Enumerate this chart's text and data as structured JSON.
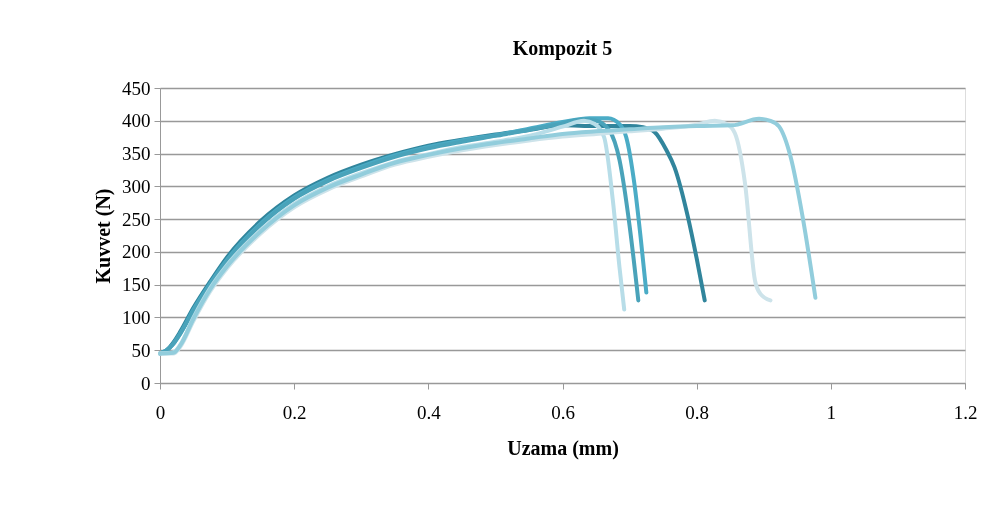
{
  "chart_data": {
    "type": "line",
    "title": "Kompozit 5",
    "xlabel": "Uzama (mm)",
    "ylabel": "Kuvvet (N)",
    "xlim": [
      0,
      1.2
    ],
    "xticks": [
      0,
      0.2,
      0.4,
      0.6,
      0.8,
      1,
      1.2
    ],
    "ylim": [
      0,
      450
    ],
    "yticks": [
      0,
      50,
      100,
      150,
      200,
      250,
      300,
      350,
      400,
      450
    ],
    "grid": "y",
    "legend": false,
    "marker": "none",
    "line_style": "solid",
    "series": [
      {
        "color": "#31859c",
        "x": [
          0,
          0.01,
          0.02,
          0.03,
          0.05,
          0.075,
          0.1,
          0.15,
          0.2,
          0.25,
          0.3,
          0.35,
          0.4,
          0.45,
          0.5,
          0.55,
          0.6,
          0.65,
          0.7,
          0.72,
          0.737,
          0.755,
          0.767,
          0.787,
          0.8,
          0.812
        ],
        "values": [
          45,
          50,
          62,
          78,
          115,
          155,
          192,
          247,
          286,
          313,
          333,
          349,
          362,
          371,
          379,
          386,
          393,
          392,
          392,
          390,
          383,
          355,
          329,
          253,
          190,
          126
        ]
      },
      {
        "color": "#4bacc6",
        "x": [
          0,
          0.01,
          0.02,
          0.03,
          0.05,
          0.075,
          0.1,
          0.15,
          0.2,
          0.25,
          0.3,
          0.35,
          0.4,
          0.45,
          0.5,
          0.55,
          0.6,
          0.64,
          0.668,
          0.685,
          0.695,
          0.707,
          0.717,
          0.725
        ],
        "values": [
          45,
          50,
          60,
          75,
          112,
          152,
          188,
          243,
          283,
          310,
          330,
          347,
          360,
          370,
          378,
          388,
          398,
          404,
          404,
          395,
          375,
          305,
          217,
          138
        ]
      },
      {
        "color": "#4aa3ba",
        "x": [
          0,
          0.01,
          0.02,
          0.03,
          0.05,
          0.075,
          0.1,
          0.15,
          0.2,
          0.25,
          0.3,
          0.35,
          0.4,
          0.45,
          0.5,
          0.55,
          0.6,
          0.63,
          0.65,
          0.67,
          0.685,
          0.7,
          0.713
        ],
        "values": [
          45,
          50,
          60,
          75,
          110,
          150,
          186,
          241,
          281,
          308,
          328,
          345,
          358,
          368,
          377,
          386,
          396,
          402,
          400,
          385,
          340,
          240,
          126
        ]
      },
      {
        "color": "#b7dde8",
        "x": [
          0,
          0.02,
          0.03,
          0.05,
          0.075,
          0.1,
          0.15,
          0.2,
          0.25,
          0.3,
          0.35,
          0.4,
          0.45,
          0.5,
          0.55,
          0.6,
          0.632,
          0.648,
          0.662,
          0.675,
          0.685,
          0.692
        ],
        "values": [
          45,
          47,
          58,
          100,
          145,
          180,
          233,
          273,
          300,
          320,
          337,
          349,
          360,
          368,
          377,
          391,
          400,
          395,
          375,
          279,
          176,
          112
        ]
      },
      {
        "color": "#cde3ea",
        "x": [
          0,
          0.02,
          0.03,
          0.05,
          0.075,
          0.1,
          0.15,
          0.2,
          0.25,
          0.3,
          0.35,
          0.4,
          0.45,
          0.5,
          0.55,
          0.6,
          0.65,
          0.7,
          0.75,
          0.8,
          0.827,
          0.845,
          0.857,
          0.872,
          0.887,
          0.895,
          0.91
        ],
        "values": [
          45,
          45,
          55,
          95,
          140,
          175,
          228,
          268,
          295,
          315,
          333,
          345,
          355,
          363,
          370,
          376,
          380,
          384,
          388,
          394,
          400,
          395,
          381,
          305,
          156,
          136,
          126
        ]
      },
      {
        "color": "#92cddc",
        "x": [
          0,
          0.02,
          0.03,
          0.05,
          0.075,
          0.1,
          0.15,
          0.2,
          0.25,
          0.3,
          0.35,
          0.4,
          0.45,
          0.5,
          0.55,
          0.6,
          0.65,
          0.7,
          0.75,
          0.8,
          0.853,
          0.893,
          0.91,
          0.923,
          0.94,
          0.958,
          0.977
        ],
        "values": [
          45,
          46,
          57,
          98,
          143,
          178,
          231,
          271,
          298,
          318,
          336,
          348,
          358,
          366,
          373,
          380,
          384,
          387,
          390,
          392,
          393,
          403,
          400,
          391,
          345,
          253,
          130
        ]
      }
    ]
  }
}
